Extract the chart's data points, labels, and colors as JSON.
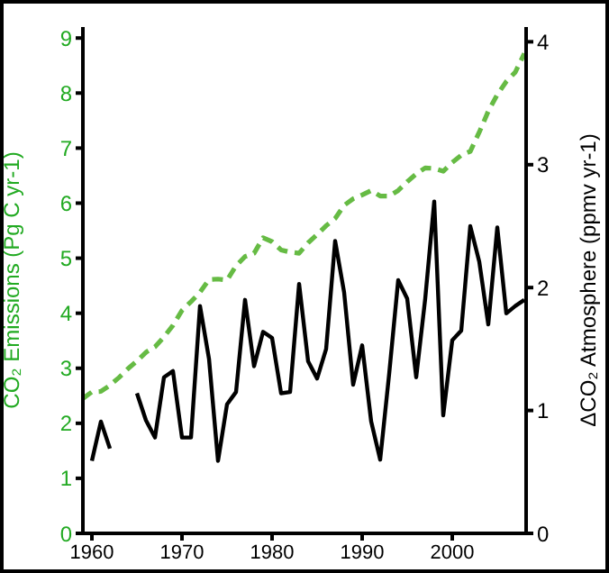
{
  "chart_data": {
    "type": "line",
    "ylabel": "CO₂ Emissions (Pg C yr-1)",
    "y2label": "ΔCO₂ Atmosphere (ppmv yr-1)",
    "x": [
      1959,
      1960,
      1961,
      1962,
      1963,
      1964,
      1965,
      1966,
      1967,
      1968,
      1969,
      1970,
      1971,
      1972,
      1973,
      1974,
      1975,
      1976,
      1977,
      1978,
      1979,
      1980,
      1981,
      1982,
      1983,
      1984,
      1985,
      1986,
      1987,
      1988,
      1989,
      1990,
      1991,
      1992,
      1993,
      1994,
      1995,
      1996,
      1997,
      1998,
      1999,
      2000,
      2001,
      2002,
      2003,
      2004,
      2005,
      2006,
      2007,
      2008
    ],
    "series": [
      {
        "color": "#66bb44",
        "line_style": "dashed",
        "values": [
          2.45,
          2.57,
          2.58,
          2.69,
          2.83,
          2.99,
          3.13,
          3.29,
          3.39,
          3.57,
          3.78,
          4.05,
          4.21,
          4.38,
          4.61,
          4.62,
          4.6,
          4.86,
          5.03,
          5.09,
          5.37,
          5.3,
          5.15,
          5.11,
          5.09,
          5.28,
          5.43,
          5.59,
          5.72,
          5.96,
          6.08,
          6.15,
          6.23,
          6.13,
          6.13,
          6.23,
          6.39,
          6.53,
          6.64,
          6.63,
          6.58,
          6.74,
          6.87,
          6.94,
          7.29,
          7.67,
          7.97,
          8.21,
          8.38,
          8.72
        ]
      },
      {
        "color": "#000000",
        "axis": "y2",
        "line_style": "solid",
        "values": [
          null,
          0.59,
          0.91,
          0.69,
          null,
          null,
          1.14,
          0.92,
          0.78,
          1.27,
          1.32,
          0.78,
          0.78,
          1.85,
          1.42,
          0.59,
          1.05,
          1.15,
          1.9,
          1.36,
          1.64,
          1.59,
          1.14,
          1.15,
          2.03,
          1.4,
          1.26,
          1.5,
          2.38,
          1.96,
          1.21,
          1.53,
          0.91,
          0.6,
          1.3,
          2.06,
          1.91,
          1.27,
          1.91,
          2.7,
          0.96,
          1.57,
          1.65,
          2.5,
          2.21,
          1.7,
          2.49,
          1.79,
          1.85,
          1.9
        ]
      }
    ],
    "xlim": [
      1959,
      2008.2
    ],
    "xticks": [
      1960,
      1970,
      1980,
      1990,
      2000
    ],
    "ylim": [
      0,
      9.2
    ],
    "yticks": [
      0,
      1,
      2,
      3,
      4,
      5,
      6,
      7,
      8,
      9
    ],
    "y2lim": [
      0,
      4.12
    ],
    "y2ticks": [
      0,
      1,
      2,
      3,
      4
    ],
    "marker": "none",
    "grid": false,
    "legend": false
  }
}
